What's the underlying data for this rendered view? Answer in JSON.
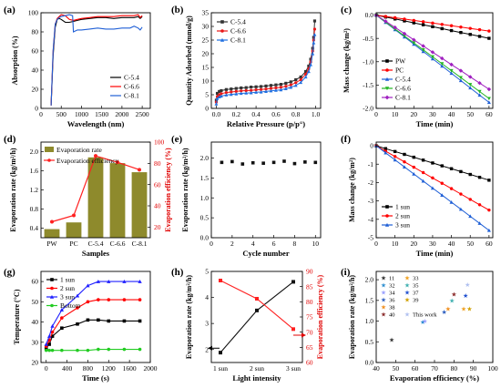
{
  "chart_data": [
    {
      "panel": "(a)",
      "type": "line",
      "xlabel": "Wavelength (nm)",
      "ylabel": "Absorption (%)",
      "xlim": [
        0,
        2700
      ],
      "ylim": [
        0,
        100
      ],
      "xticks": [
        "0",
        "500",
        "1000",
        "1500",
        "2000",
        "2500"
      ],
      "yticks": [
        "0",
        "20",
        "40",
        "60",
        "80",
        "100"
      ],
      "legend": "bottom-right",
      "series": [
        {
          "name": "C-5.4",
          "color": "#000000",
          "x": [
            250,
            300,
            350,
            400,
            450,
            500,
            600,
            700,
            800,
            900,
            1000,
            1200,
            1400,
            1600,
            1800,
            2000,
            2200,
            2300,
            2400,
            2450,
            2500
          ],
          "y": [
            3,
            55,
            85,
            93,
            94,
            93,
            90,
            90,
            91,
            92,
            93,
            94,
            95,
            95,
            94,
            95,
            95,
            95,
            96,
            94,
            96
          ]
        },
        {
          "name": "C-6.6",
          "color": "#ff0000",
          "x": [
            250,
            300,
            350,
            400,
            450,
            500,
            600,
            700,
            800,
            900,
            1000,
            1200,
            1400,
            1600,
            1800,
            2000,
            2200,
            2300,
            2400,
            2450,
            2500
          ],
          "y": [
            3,
            60,
            88,
            94,
            96,
            98,
            97,
            93,
            92,
            93,
            94,
            95,
            96,
            96,
            96,
            97,
            97,
            97,
            98,
            95,
            97
          ]
        },
        {
          "name": "C-8.1",
          "color": "#1f5fd6",
          "x": [
            250,
            300,
            350,
            400,
            450,
            500,
            600,
            700,
            780,
            800,
            900,
            1000,
            1200,
            1400,
            1600,
            1800,
            2000,
            2200,
            2300,
            2400,
            2450,
            2500
          ],
          "y": [
            3,
            60,
            88,
            93,
            95,
            96,
            97,
            98,
            97,
            80,
            82,
            82,
            83,
            84,
            83,
            83,
            84,
            84,
            86,
            84,
            82,
            85
          ]
        }
      ]
    },
    {
      "panel": "(b)",
      "type": "line",
      "xlabel": "Relative Pressure (p/p°)",
      "ylabel": "Quantity Adsorbed (mmol/g)",
      "xlim": [
        -0.05,
        1.05
      ],
      "ylim": [
        0,
        35
      ],
      "xticks": [
        "0.0",
        "0.2",
        "0.4",
        "0.6",
        "0.8",
        "1.0"
      ],
      "yticks": [
        "0",
        "5",
        "10",
        "15",
        "20",
        "25",
        "30",
        "35"
      ],
      "legend": "top-left",
      "series": [
        {
          "name": "C-5.4",
          "color": "#333333",
          "marker": "square",
          "x": [
            0.0,
            0.01,
            0.03,
            0.05,
            0.1,
            0.15,
            0.2,
            0.25,
            0.3,
            0.35,
            0.4,
            0.45,
            0.5,
            0.55,
            0.6,
            0.65,
            0.7,
            0.75,
            0.8,
            0.85,
            0.9,
            0.93,
            0.95,
            0.97,
            0.98,
            0.99
          ],
          "y": [
            3,
            5.5,
            6.2,
            6.5,
            6.9,
            7.1,
            7.3,
            7.5,
            7.6,
            7.8,
            7.9,
            8.0,
            8.2,
            8.4,
            8.6,
            8.8,
            9.2,
            9.7,
            10.5,
            11.5,
            13.5,
            15.5,
            18,
            22,
            26,
            32
          ]
        },
        {
          "name": "C-6.6",
          "color": "#e81818",
          "marker": "circle",
          "x": [
            0.0,
            0.01,
            0.03,
            0.05,
            0.1,
            0.15,
            0.2,
            0.25,
            0.3,
            0.35,
            0.4,
            0.45,
            0.5,
            0.55,
            0.6,
            0.65,
            0.7,
            0.75,
            0.8,
            0.85,
            0.9,
            0.93,
            0.95,
            0.97,
            0.98,
            0.99
          ],
          "y": [
            2.3,
            4.3,
            5.0,
            5.4,
            5.8,
            6.0,
            6.2,
            6.4,
            6.5,
            6.6,
            6.8,
            6.9,
            7.1,
            7.3,
            7.5,
            7.7,
            8.1,
            8.6,
            9.4,
            10.5,
            12.5,
            14.5,
            17,
            21,
            25,
            29
          ]
        },
        {
          "name": "C-8.1",
          "color": "#1f6fe0",
          "marker": "triangle",
          "x": [
            0.0,
            0.01,
            0.03,
            0.05,
            0.1,
            0.15,
            0.2,
            0.25,
            0.3,
            0.35,
            0.4,
            0.45,
            0.5,
            0.55,
            0.6,
            0.65,
            0.7,
            0.75,
            0.8,
            0.85,
            0.9,
            0.93,
            0.95,
            0.97,
            0.98,
            0.99
          ],
          "y": [
            1.6,
            3.6,
            4.2,
            4.5,
            4.9,
            5.1,
            5.3,
            5.5,
            5.6,
            5.7,
            5.9,
            6.0,
            6.2,
            6.4,
            6.6,
            6.8,
            7.2,
            7.7,
            8.4,
            9.5,
            11.5,
            13.5,
            16,
            20,
            24,
            27
          ]
        }
      ]
    },
    {
      "panel": "(c)",
      "type": "line",
      "xlabel": "Time (min)",
      "ylabel": "Mass change (kg/m²)",
      "xlim": [
        0,
        62
      ],
      "ylim": [
        -2.0,
        0.05
      ],
      "xticks": [
        "0",
        "10",
        "20",
        "30",
        "40",
        "50",
        "60"
      ],
      "yticks": [
        "0.0",
        "-0.5",
        "-1.0",
        "-1.5",
        "-2.0"
      ],
      "legend": "bottom-left",
      "series": [
        {
          "name": "PW",
          "color": "#000000",
          "marker": "square",
          "slope": -0.0083
        },
        {
          "name": "PC",
          "color": "#ff0000",
          "marker": "circle",
          "slope": -0.0057
        },
        {
          "name": "C-5.4",
          "color": "#1f5fd6",
          "marker": "triangle",
          "slope": -0.0312
        },
        {
          "name": "C-6.6",
          "color": "#22b522",
          "marker": "inv-triangle",
          "slope": -0.0298
        },
        {
          "name": "C-8.1",
          "color": "#a020c0",
          "marker": "diamond",
          "slope": -0.0265
        }
      ]
    },
    {
      "panel": "(d)",
      "type": "bar",
      "xlabel": "Samples",
      "ylabel": "Evaporation rate (kg/m²/h)",
      "y2label": "Evaporation efficiency (%)",
      "categories": [
        "PW",
        "PC",
        "C-5.4",
        "C-6.6",
        "C-8.1"
      ],
      "ylim": [
        0.2,
        2.2
      ],
      "y2lim": [
        10,
        100
      ],
      "yticks": [
        "0.4",
        "0.8",
        "1.2",
        "1.6",
        "2.0"
      ],
      "y2ticks": [
        "20",
        "40",
        "60",
        "80",
        "100"
      ],
      "legend": "top-left",
      "series": [
        {
          "name": "Evaporation rate",
          "color": "#8e8a2c",
          "values": [
            0.38,
            0.52,
            1.88,
            1.76,
            1.57
          ]
        },
        {
          "name": "Evaporation efficiency",
          "color": "#ff2020",
          "axis": "right",
          "values": [
            25,
            31,
            87,
            81,
            74
          ]
        }
      ]
    },
    {
      "panel": "(e)",
      "type": "scatter",
      "xlabel": "Cycle number",
      "ylabel": "Evaporation rate (kg/m²/h)",
      "xlim": [
        0,
        10.5
      ],
      "ylim": [
        0,
        2.4
      ],
      "xticks": [
        "0",
        "2",
        "4",
        "6",
        "8",
        "10"
      ],
      "yticks": [
        "0.0",
        "0.5",
        "1.0",
        "1.5",
        "2.0"
      ],
      "series": [
        {
          "name": "",
          "color": "#111111",
          "x": [
            1,
            2,
            3,
            4,
            5,
            6,
            7,
            8,
            9,
            10
          ],
          "y": [
            1.89,
            1.91,
            1.85,
            1.88,
            1.87,
            1.89,
            1.92,
            1.86,
            1.9,
            1.89
          ]
        }
      ]
    },
    {
      "panel": "(f)",
      "type": "line",
      "xlabel": "Time (min)",
      "ylabel": "Mass change (kg/m²)",
      "xlim": [
        0,
        62
      ],
      "ylim": [
        -5.0,
        0.2
      ],
      "xticks": [
        "0",
        "10",
        "20",
        "30",
        "40",
        "50",
        "60"
      ],
      "yticks": [
        "0",
        "-1",
        "-2",
        "-3",
        "-4",
        "-5"
      ],
      "legend": "bottom-left",
      "series": [
        {
          "name": "1 sun",
          "color": "#000000",
          "marker": "square",
          "slope": -0.0312
        },
        {
          "name": "2 sun",
          "color": "#ff0000",
          "marker": "circle",
          "slope": -0.0583
        },
        {
          "name": "3 sun",
          "color": "#1f5fd6",
          "marker": "triangle",
          "slope": -0.0767
        }
      ]
    },
    {
      "panel": "(g)",
      "type": "line",
      "xlabel": "Time (s)",
      "ylabel": "Temperature (°C)",
      "xlim": [
        -100,
        2000
      ],
      "ylim": [
        20,
        65
      ],
      "xticks": [
        "0",
        "400",
        "800",
        "1200",
        "1600",
        "2000"
      ],
      "yticks": [
        "20",
        "30",
        "40",
        "50",
        "60"
      ],
      "legend": "top-left",
      "series": [
        {
          "name": "1 sun",
          "color": "#000000",
          "marker": "square",
          "x": [
            0,
            60,
            120,
            300,
            600,
            800,
            1000,
            1200,
            1500,
            1800
          ],
          "y": [
            27,
            29,
            33,
            37,
            39,
            41,
            41,
            40.5,
            40.5,
            40.5
          ]
        },
        {
          "name": "2 sun",
          "color": "#ff0000",
          "marker": "circle",
          "x": [
            0,
            60,
            120,
            300,
            600,
            800,
            1000,
            1200,
            1500,
            1800
          ],
          "y": [
            28,
            31,
            35,
            42,
            47,
            50,
            51,
            51,
            51,
            51
          ]
        },
        {
          "name": "3 sun",
          "color": "#2020ff",
          "marker": "triangle",
          "x": [
            0,
            60,
            120,
            300,
            600,
            800,
            1000,
            1200,
            1500,
            1800
          ],
          "y": [
            29,
            33,
            38,
            46,
            53,
            58,
            60,
            60,
            60,
            60
          ]
        },
        {
          "name": "Bottom",
          "color": "#22cc22",
          "marker": "circle",
          "x": [
            0,
            60,
            120,
            300,
            600,
            800,
            1000,
            1200,
            1500,
            1800
          ],
          "y": [
            26,
            26,
            26,
            26,
            26,
            26,
            26.5,
            26.5,
            26.5,
            26.5
          ]
        }
      ]
    },
    {
      "panel": "(h)",
      "type": "line",
      "xlabel": "Light intensity",
      "ylabel": "Evaporation rate (kg/m²/h)",
      "y2label": "Evaporation efficiency (%)",
      "categories": [
        "1 sun",
        "2 sun",
        "3 sun"
      ],
      "ylim": [
        1.5,
        5.0
      ],
      "y2lim": [
        60,
        90
      ],
      "yticks": [
        "2",
        "3",
        "4",
        "5"
      ],
      "y2ticks": [
        "60",
        "65",
        "70",
        "75",
        "80",
        "85",
        "90"
      ],
      "series": [
        {
          "name": "Evaporation rate",
          "color": "#111111",
          "marker": "square",
          "values": [
            1.88,
            3.5,
            4.6
          ]
        },
        {
          "name": "Evaporation efficiency",
          "color": "#ff2020",
          "marker": "square",
          "axis": "right",
          "values": [
            87,
            81,
            71
          ]
        }
      ]
    },
    {
      "panel": "(i)",
      "type": "scatter",
      "xlabel": "Evaporation efficiency (%)",
      "ylabel": "Evaporation rate (kg/m²/h)",
      "xlim": [
        40,
        100
      ],
      "ylim": [
        0,
        2.2
      ],
      "xticks": [
        "40",
        "50",
        "60",
        "70",
        "80",
        "90",
        "100"
      ],
      "yticks": [
        "0.0",
        "0.5",
        "1.0",
        "1.5",
        "2.0"
      ],
      "legend": "top-left",
      "series": [
        {
          "name": "11",
          "color": "#333333",
          "x": [
            48
          ],
          "y": [
            0.55
          ]
        },
        {
          "name": "32",
          "color": "#2f8fd0",
          "x": [
            64
          ],
          "y": [
            0.98
          ]
        },
        {
          "name": "34",
          "color": "#9aa0ff",
          "x": [
            65
          ],
          "y": [
            1.0
          ]
        },
        {
          "name": "36",
          "color": "#3060c0",
          "x": [
            75
          ],
          "y": [
            1.22
          ]
        },
        {
          "name": "38",
          "color": "#f09020",
          "x": [
            77
          ],
          "y": [
            1.3
          ]
        },
        {
          "name": "40",
          "color": "#8a2a2a",
          "x": [
            80
          ],
          "y": [
            1.65
          ]
        },
        {
          "name": "33",
          "color": "#f0a020",
          "x": [
            85
          ],
          "y": [
            1.3
          ]
        },
        {
          "name": "35",
          "color": "#40b0b0",
          "x": [
            79
          ],
          "y": [
            1.5
          ]
        },
        {
          "name": "37",
          "color": "#2050d0",
          "x": [
            86
          ],
          "y": [
            1.62
          ]
        },
        {
          "name": "39",
          "color": "#d0a000",
          "x": [
            88
          ],
          "y": [
            1.3
          ]
        },
        {
          "name": "This work",
          "color": "#b0c0f0",
          "x": [
            87
          ],
          "y": [
            1.88
          ]
        }
      ]
    }
  ]
}
